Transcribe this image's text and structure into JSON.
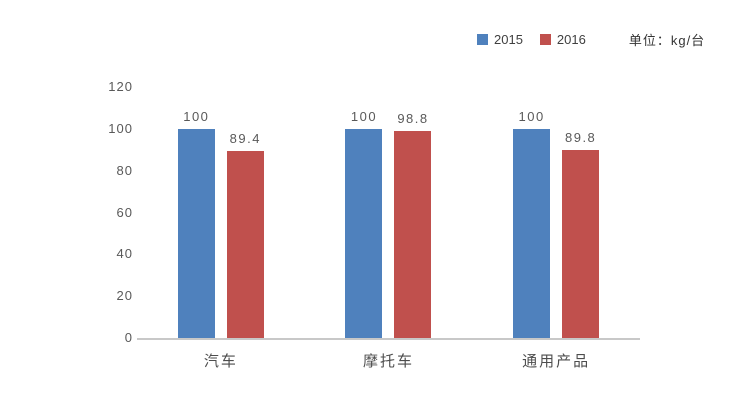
{
  "chart_data": {
    "type": "bar",
    "title": "",
    "xlabel": "",
    "ylabel": "",
    "unit_label": "单位：kg/台",
    "categories": [
      "汽车",
      "摩托车",
      "通用产品"
    ],
    "series": [
      {
        "name": "2015",
        "color": "#4F81BD",
        "values": [
          100,
          100,
          100
        ],
        "labels": [
          "100",
          "100",
          "100"
        ]
      },
      {
        "name": "2016",
        "color": "#C0504D",
        "values": [
          89.4,
          98.8,
          89.8
        ],
        "labels": [
          "89.4",
          "98.8",
          "89.8"
        ]
      }
    ],
    "ylim": [
      0,
      120
    ],
    "yticks": [
      0,
      20,
      40,
      60,
      80,
      100,
      120
    ],
    "grid": false,
    "legend_position": "top-right",
    "colors": {
      "axis_line": "#C8C8C8",
      "tick_text": "#595959",
      "category_text": "#4D4D4D",
      "legend_text": "#404040",
      "background": "#FFFFFF"
    }
  }
}
